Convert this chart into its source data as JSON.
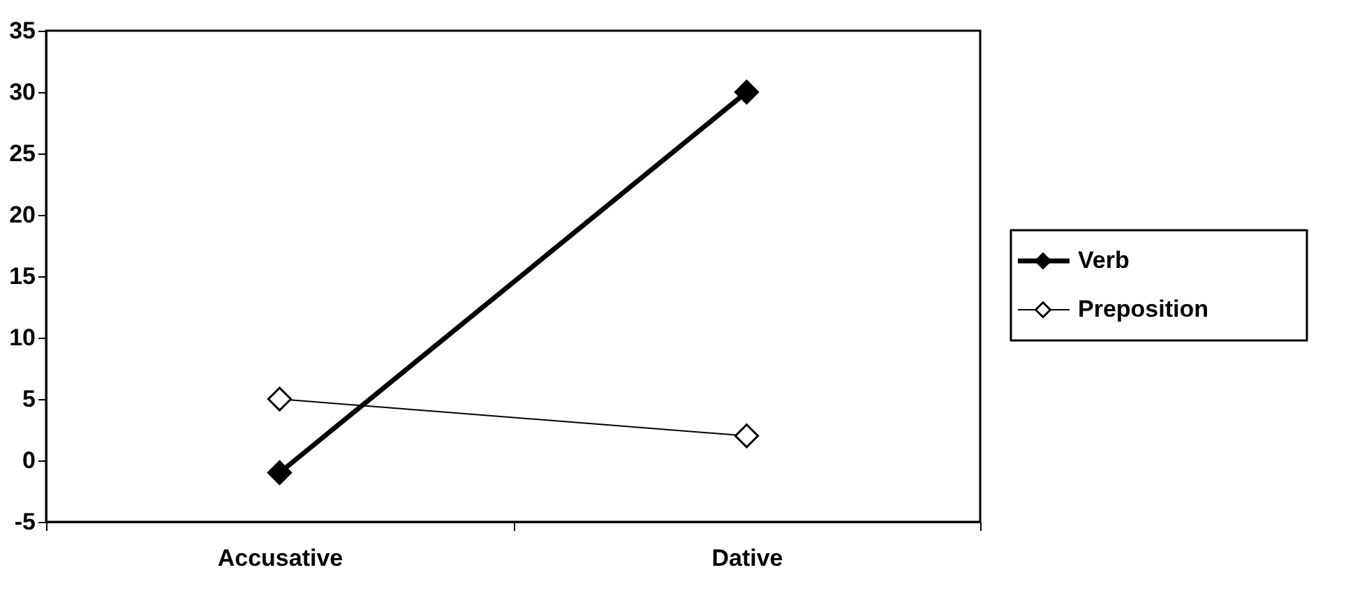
{
  "chart_data": {
    "type": "line",
    "categories": [
      "Accusative",
      "Dative"
    ],
    "series": [
      {
        "name": "Verb",
        "color": "#000000",
        "values": [
          -1,
          30
        ]
      },
      {
        "name": "Preposition",
        "color": "#000000",
        "values": [
          5,
          2
        ]
      }
    ],
    "ylim": [
      -5,
      35
    ],
    "yticks": [
      -5,
      0,
      5,
      10,
      15,
      20,
      25,
      30,
      35
    ],
    "grid": false,
    "legend": "right",
    "marker": "diamond",
    "line_style": "solid"
  }
}
